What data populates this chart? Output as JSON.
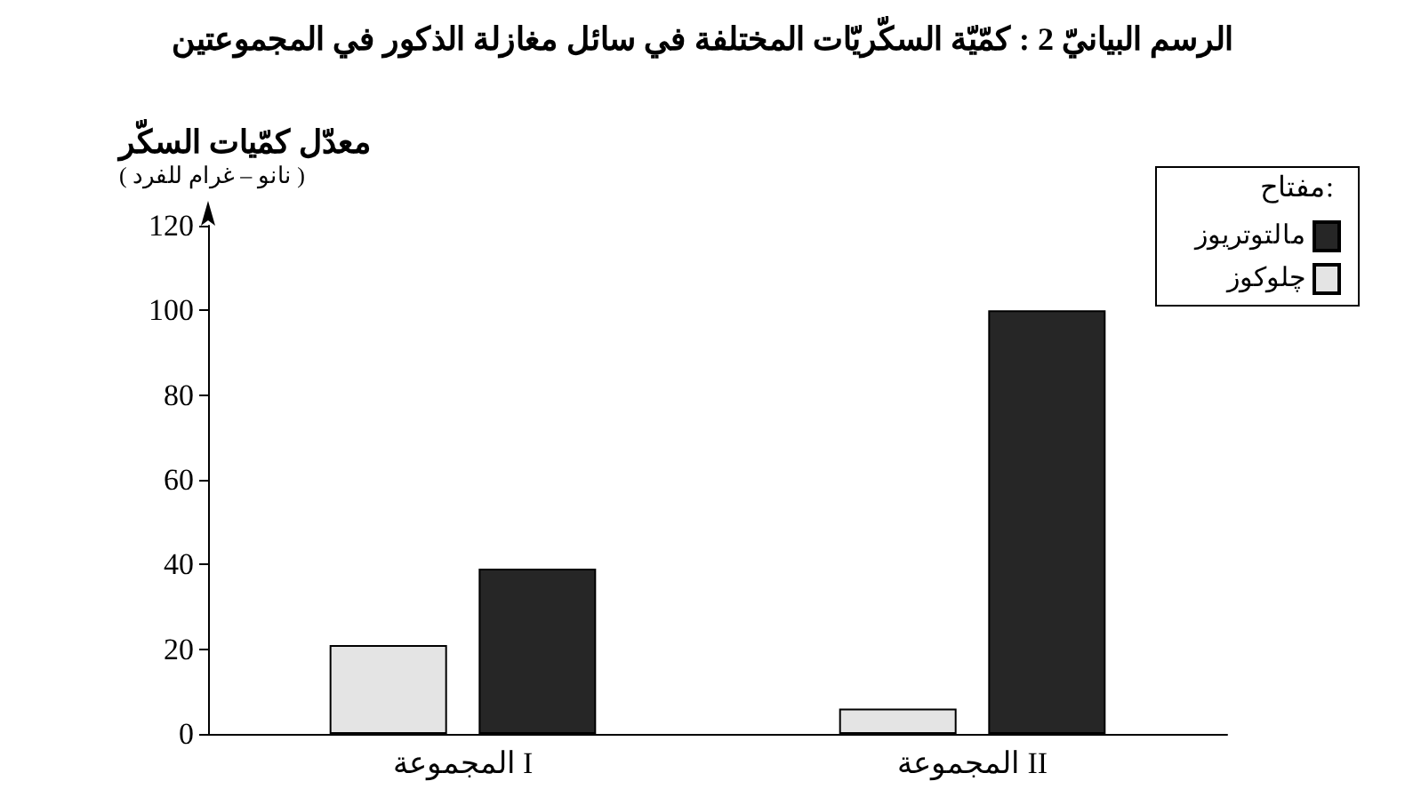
{
  "chart_data": {
    "type": "bar",
    "title": "الرسم البيانيّ 2 : كمّيّة السكّريّات المختلفة في سائل مغازلة الذكور في المجموعتين",
    "ylabel": "معدّل كمّيات السكّر\n( نانو – غرام للفرد )",
    "legend_title": "مفتاح:",
    "categories": [
      "المجموعة I",
      "المجموعة II"
    ],
    "series": [
      {
        "name": "چلوكوز",
        "color": "#e4e4e4",
        "values": [
          21,
          6
        ]
      },
      {
        "name": "مالتوتريوز",
        "color": "#262626",
        "values": [
          39,
          100
        ]
      }
    ],
    "ylim": [
      0,
      120
    ],
    "yticks": [
      0,
      20,
      40,
      60,
      80,
      100,
      120
    ],
    "grid": false,
    "legend": "top right"
  }
}
